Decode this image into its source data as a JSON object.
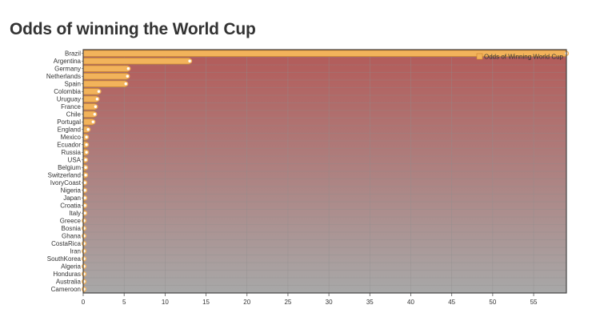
{
  "page": {
    "title": "Odds of winning the World Cup"
  },
  "colors": {
    "bar_fill": "#F2B35B",
    "bar_stroke": "#C9802A",
    "point_fill": "#FFFFFF",
    "gradient_top": "#B35A58",
    "gradient_bottom": "#A8A8A8",
    "grid": "#8E8E8E",
    "frame": "#444444"
  },
  "chart_data": {
    "type": "bar",
    "orientation": "horizontal",
    "title": "Odds of winning the World Cup",
    "xlabel": "",
    "ylabel": "",
    "xlim": [
      0,
      59
    ],
    "x_ticks": [
      0,
      5,
      10,
      15,
      20,
      25,
      30,
      35,
      40,
      45,
      50,
      55
    ],
    "grid": true,
    "legend_position": "top-right",
    "categories": [
      "Brazil",
      "Argentina",
      "Germany",
      "Netherlands",
      "Spain",
      "Colombia",
      "Uruguay",
      "France",
      "Chile",
      "Portugal",
      "England",
      "Mexico",
      "Ecuador",
      "Russia",
      "USA",
      "Belgium",
      "Switzerland",
      "IvoryCoast",
      "Nigeria",
      "Japan",
      "Croatia",
      "Italy",
      "Greece",
      "Bosnia",
      "Ghana",
      "CostaRica",
      "Iran",
      "SouthKorea",
      "Algeria",
      "Honduras",
      "Australia",
      "Cameroon"
    ],
    "series": [
      {
        "name": "Odds of Winning World Cup",
        "values": [
          59,
          13,
          5.5,
          5.4,
          5.2,
          1.9,
          1.7,
          1.5,
          1.4,
          1.2,
          0.6,
          0.4,
          0.4,
          0.4,
          0.3,
          0.3,
          0.3,
          0.2,
          0.2,
          0.2,
          0.2,
          0.2,
          0.1,
          0.1,
          0.1,
          0.1,
          0.1,
          0.1,
          0.1,
          0.1,
          0.1,
          0.1
        ]
      }
    ]
  }
}
